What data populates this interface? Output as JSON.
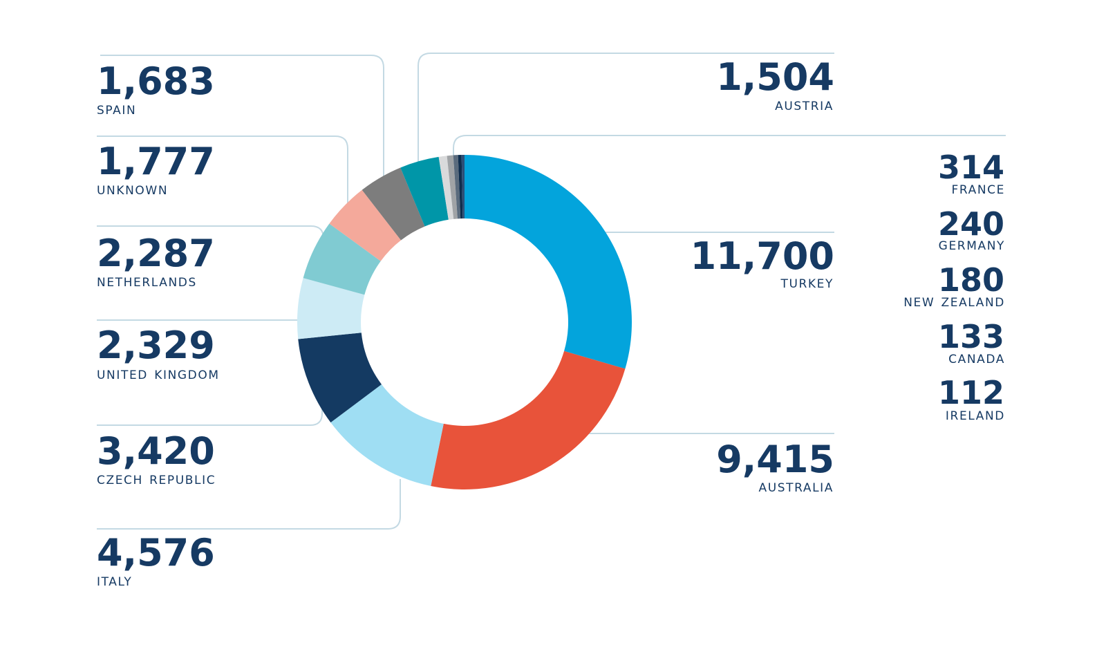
{
  "chart_data": {
    "type": "pie",
    "style": "donut",
    "slices": [
      {
        "label": "Turkey",
        "value": 11700,
        "value_text": "11,700",
        "color": "#03a4dc"
      },
      {
        "label": "Australia",
        "value": 9415,
        "value_text": "9,415",
        "color": "#e8533a"
      },
      {
        "label": "Italy",
        "value": 4576,
        "value_text": "4,576",
        "color": "#9fdef3"
      },
      {
        "label": "Czech Republic",
        "value": 3420,
        "value_text": "3,420",
        "color": "#143a62"
      },
      {
        "label": "United Kingdom",
        "value": 2329,
        "value_text": "2,329",
        "color": "#cdebf5"
      },
      {
        "label": "Netherlands",
        "value": 2287,
        "value_text": "2,287",
        "color": "#80cbd2"
      },
      {
        "label": "Unknown",
        "value": 1777,
        "value_text": "1,777",
        "color": "#f4a99b"
      },
      {
        "label": "Spain",
        "value": 1683,
        "value_text": "1,683",
        "color": "#7d7d7d"
      },
      {
        "label": "Austria",
        "value": 1504,
        "value_text": "1,504",
        "color": "#0096a8"
      },
      {
        "label": "France",
        "value": 314,
        "value_text": "314",
        "color": "#d9dadb"
      },
      {
        "label": "Germany",
        "value": 240,
        "value_text": "240",
        "color": "#a0a3a6"
      },
      {
        "label": "New Zealand",
        "value": 180,
        "value_text": "180",
        "color": "#5a6b7d"
      },
      {
        "label": "Canada",
        "value": 133,
        "value_text": "133",
        "color": "#0f2d4d"
      },
      {
        "label": "Ireland",
        "value": 112,
        "value_text": "112",
        "color": "#2c4f78"
      }
    ]
  }
}
